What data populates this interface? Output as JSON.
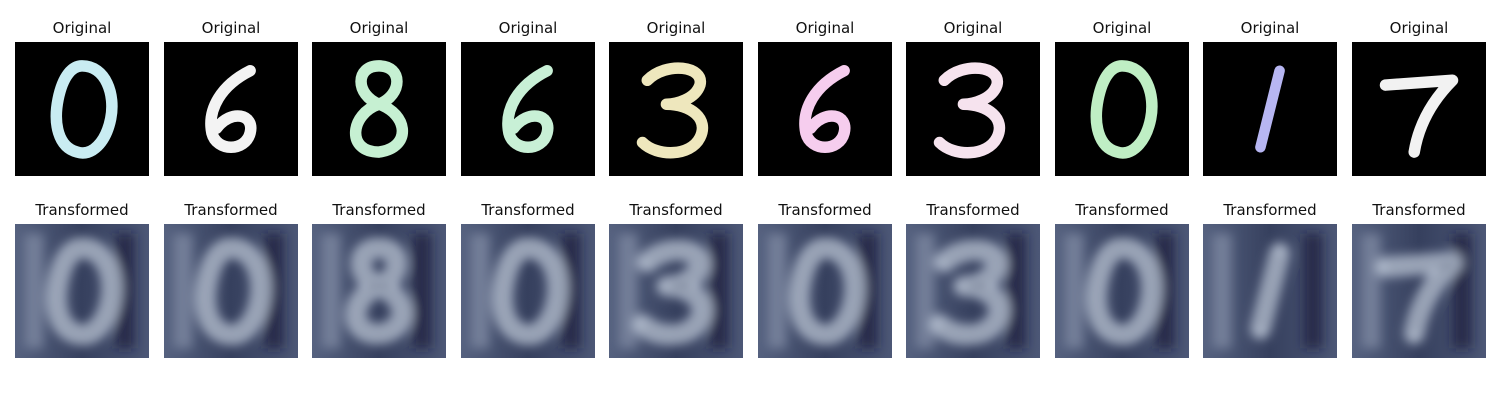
{
  "titles": {
    "original": "Original",
    "transformed": "Transformed"
  },
  "digits": [
    {
      "label": "0",
      "original_color": "#c9ecf2",
      "transformed_digit": "0"
    },
    {
      "label": "6",
      "original_color": "#f3f3f3",
      "transformed_digit": "0"
    },
    {
      "label": "8",
      "original_color": "#c6f0d2",
      "transformed_digit": "8"
    },
    {
      "label": "6",
      "original_color": "#c8f0d6",
      "transformed_digit": "0"
    },
    {
      "label": "3",
      "original_color": "#eee7bd",
      "transformed_digit": "3"
    },
    {
      "label": "6",
      "original_color": "#f6cdee",
      "transformed_digit": "0"
    },
    {
      "label": "3",
      "original_color": "#f6e3ee",
      "transformed_digit": "3"
    },
    {
      "label": "0",
      "original_color": "#bfeec4",
      "transformed_digit": "0"
    },
    {
      "label": "1",
      "original_color": "#b7b6f2",
      "transformed_digit": "1"
    },
    {
      "label": "7",
      "original_color": "#f2f2f2",
      "transformed_digit": "7"
    }
  ],
  "colors": {
    "original_background": "#000000",
    "transformed_background": "#36405e",
    "transformed_stroke": "#c6d0df",
    "transformed_dark": "#17203c"
  }
}
